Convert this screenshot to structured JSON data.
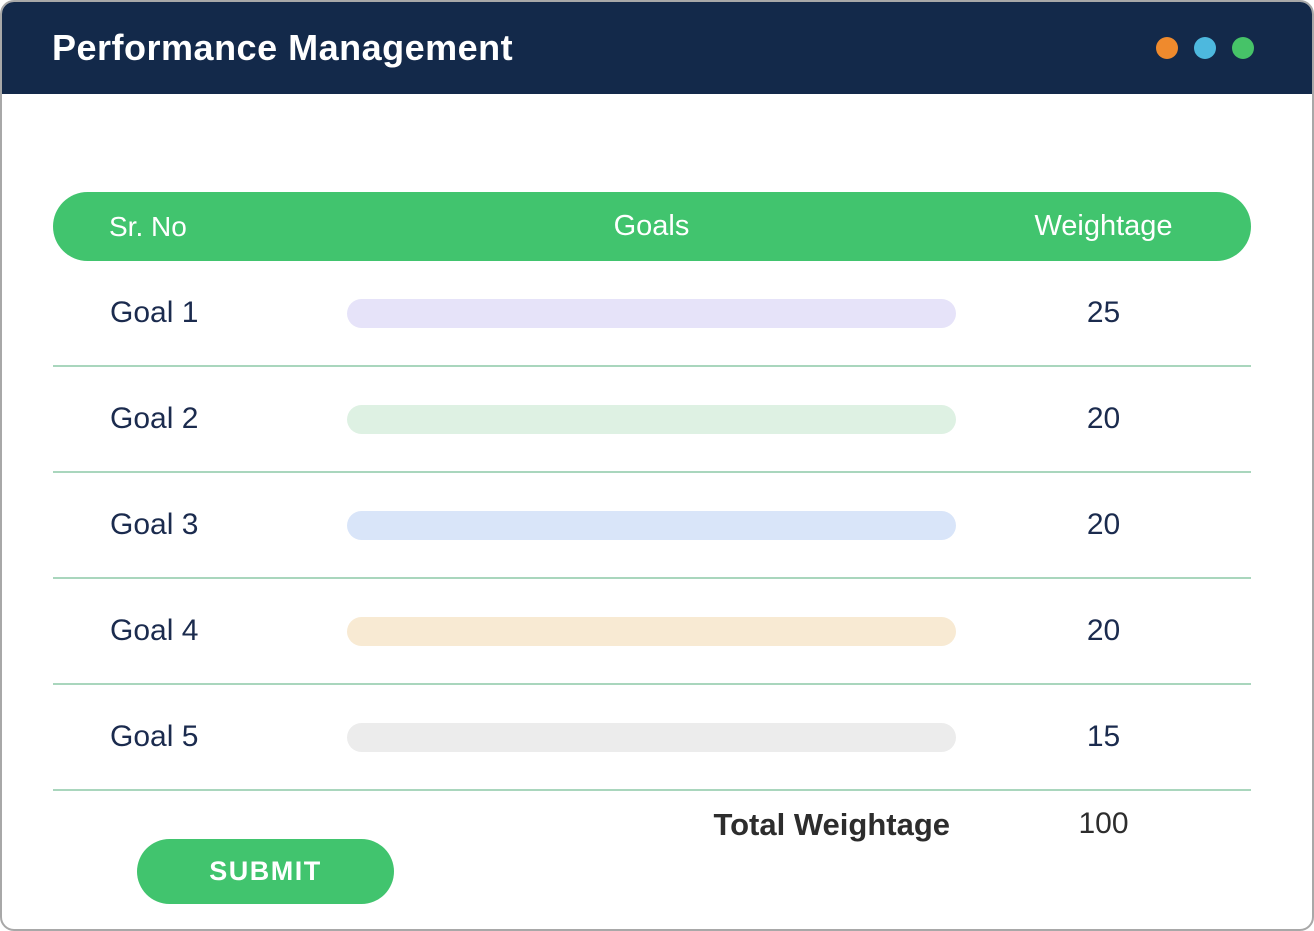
{
  "window": {
    "title": "Performance Management",
    "traffic_lights": [
      "#ef8a2d",
      "#4db8de",
      "#46c368"
    ]
  },
  "table": {
    "headers": {
      "sr_no": "Sr. No",
      "goals": "Goals",
      "weightage": "Weightage"
    },
    "rows": [
      {
        "label": "Goal 1",
        "weightage": "25",
        "pill_color": "#e6e3f9"
      },
      {
        "label": "Goal 2",
        "weightage": "20",
        "pill_color": "#def1e3"
      },
      {
        "label": "Goal 3",
        "weightage": "20",
        "pill_color": "#d9e5f9"
      },
      {
        "label": "Goal 4",
        "weightage": "20",
        "pill_color": "#f8ead3"
      },
      {
        "label": "Goal 5",
        "weightage": "15",
        "pill_color": "#ececec"
      }
    ],
    "total": {
      "label": "Total Weightage",
      "value": "100"
    }
  },
  "submit_label": "SUBMIT",
  "colors": {
    "titlebar_bg": "#13294a",
    "table_header_bg": "#41c46e",
    "divider": "#a9d6bd",
    "submit_bg": "#41c46e"
  }
}
